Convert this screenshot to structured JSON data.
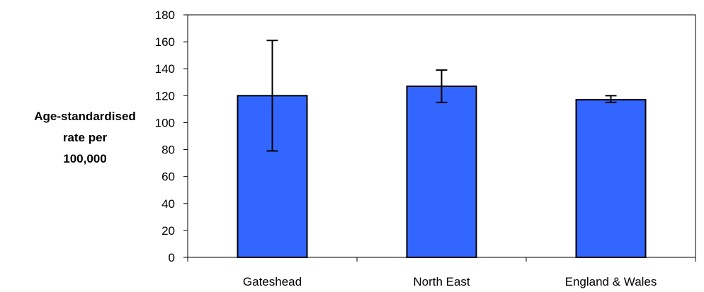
{
  "chart_data": {
    "type": "bar",
    "categories": [
      "Gateshead",
      "North East",
      "England & Wales"
    ],
    "values": [
      120,
      127,
      117
    ],
    "error_low": [
      79,
      115,
      115
    ],
    "error_high": [
      161,
      139,
      120
    ],
    "ylabel_lines": [
      "Age-standardised",
      "rate per",
      "100,000"
    ],
    "ylim": [
      0,
      180
    ],
    "yticks": [
      "0",
      "20",
      "40",
      "60",
      "80",
      "100",
      "120",
      "140",
      "160",
      "180"
    ],
    "grid": false,
    "legend": "none",
    "colors": {
      "bar": "#3366ff",
      "bar_stroke": "#000000",
      "axis": "#000000"
    }
  }
}
